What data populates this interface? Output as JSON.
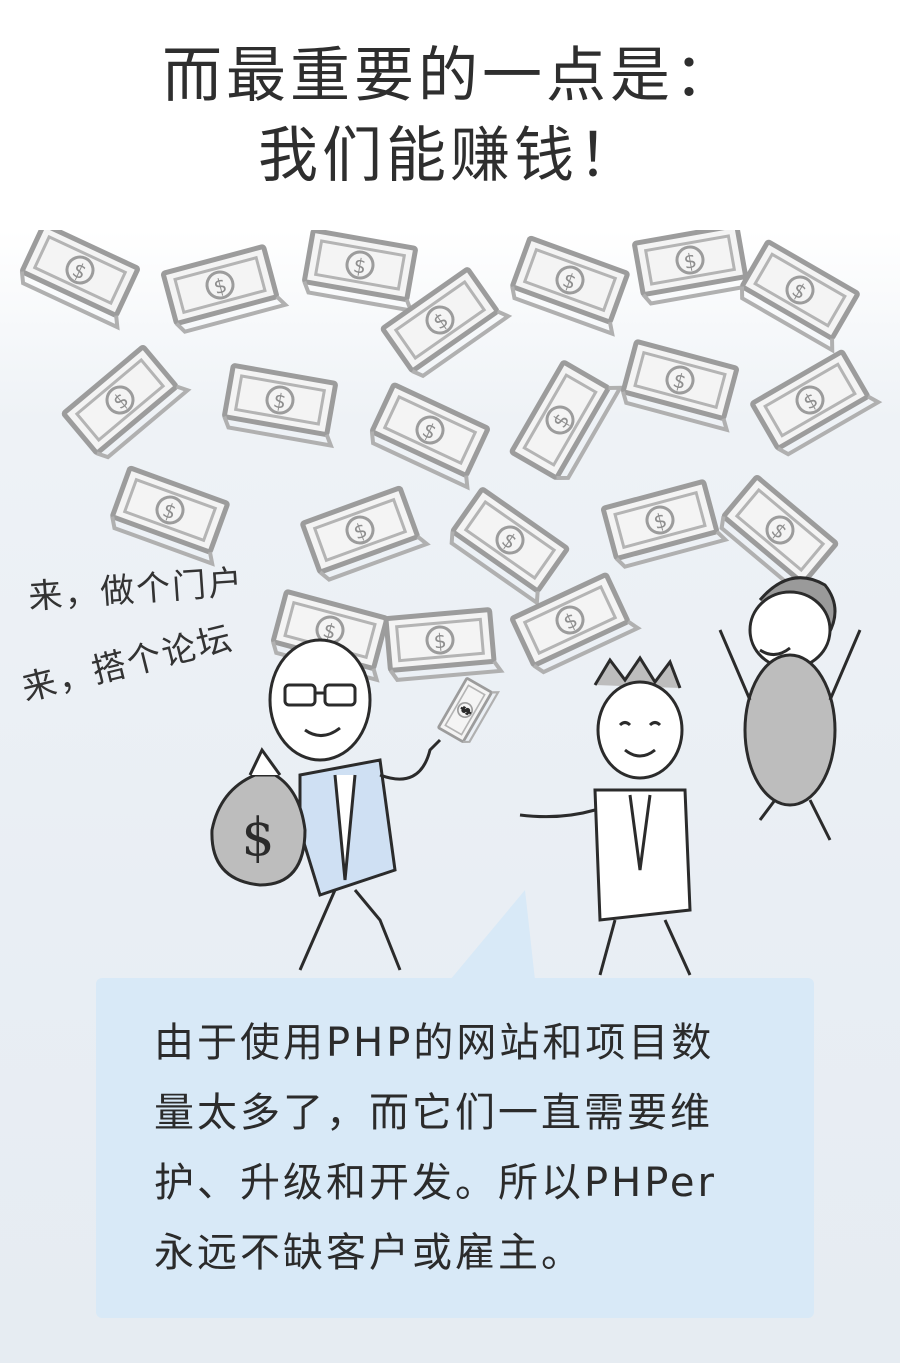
{
  "title": {
    "line1": "而最重要的一点是：",
    "line2": "我们能赚钱！"
  },
  "illustration": {
    "note_portal": "来，做个门户",
    "note_forum": "来，搭个论坛",
    "money_bag_symbol": "$",
    "bill_symbol": "$",
    "icons": [
      "money-bill-icon",
      "money-bag-icon"
    ]
  },
  "caption": {
    "line1": "由于使用PHP的网站和项目数",
    "line2": "量太多了，而它们一直需要维",
    "line3": "护、升级和开发。所以PHPer",
    "line4": "永远不缺客户或雇主。"
  },
  "colors": {
    "caption_bg": "#d8e9f7",
    "shirt_blue": "#cfe0f3",
    "bag_gray": "#bdbdbd",
    "bill_gray": "#a8a8a8"
  }
}
